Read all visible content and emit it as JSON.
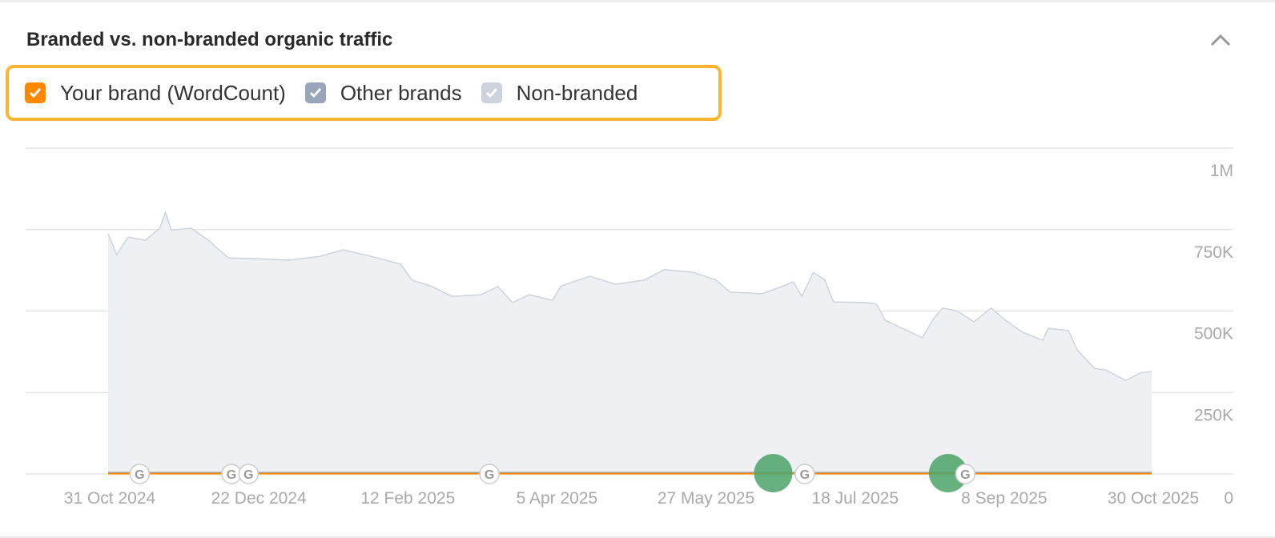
{
  "card": {
    "title": "Branded vs. non-branded organic traffic",
    "collapse_icon": "chevron-up-icon"
  },
  "legend": [
    {
      "label": "Your brand (WordCount)",
      "color": "#ff8800",
      "checked": true
    },
    {
      "label": "Other brands",
      "color": "#97a6b8",
      "checked": true
    },
    {
      "label": "Non-branded",
      "color": "#cdd3dc",
      "checked": true
    }
  ],
  "highlight_color": "#fdb52f",
  "chart_data": {
    "type": "area",
    "stacked": true,
    "title": "",
    "xlabel": "",
    "ylabel": "",
    "ylim": [
      0,
      1000000
    ],
    "xlim": [
      "2024-10-31",
      "2025-10-30"
    ],
    "grid": true,
    "y_axis_position": "right",
    "y_ticks": [
      "0",
      "250K",
      "500K",
      "750K",
      "1M"
    ],
    "y_tick_values": [
      0,
      250000,
      500000,
      750000,
      1000000
    ],
    "x_ticks": [
      "31 Oct 2024",
      "22 Dec 2024",
      "12 Feb 2025",
      "5 Apr 2025",
      "27 May 2025",
      "18 Jul 2025",
      "8 Sep 2025",
      "30 Oct 2025"
    ],
    "x_tick_dates": [
      "2024-10-31",
      "2024-12-22",
      "2025-02-12",
      "2025-04-05",
      "2025-05-27",
      "2025-07-18",
      "2025-09-08",
      "2025-10-30"
    ],
    "x": [
      "2024-10-31",
      "2024-11-03",
      "2024-11-07",
      "2024-11-13",
      "2024-11-18",
      "2024-11-20",
      "2024-11-22",
      "2024-11-29",
      "2024-12-05",
      "2024-12-12",
      "2024-12-22",
      "2025-01-02",
      "2025-01-13",
      "2025-01-21",
      "2025-02-02",
      "2025-02-10",
      "2025-02-14",
      "2025-02-21",
      "2025-02-28",
      "2025-03-10",
      "2025-03-16",
      "2025-03-21",
      "2025-03-27",
      "2025-04-04",
      "2025-04-07",
      "2025-04-17",
      "2025-04-26",
      "2025-05-06",
      "2025-05-13",
      "2025-05-23",
      "2025-05-31",
      "2025-06-05",
      "2025-06-16",
      "2025-06-23",
      "2025-06-27",
      "2025-06-30",
      "2025-07-04",
      "2025-07-08",
      "2025-07-11",
      "2025-07-22",
      "2025-07-26",
      "2025-07-29",
      "2025-08-04",
      "2025-08-11",
      "2025-08-15",
      "2025-08-18",
      "2025-08-23",
      "2025-08-29",
      "2025-09-04",
      "2025-09-09",
      "2025-09-15",
      "2025-09-22",
      "2025-09-24",
      "2025-10-01",
      "2025-10-04",
      "2025-10-10",
      "2025-10-14",
      "2025-10-21",
      "2025-10-26",
      "2025-10-30"
    ],
    "series": [
      {
        "name": "Non-branded",
        "color": "#cdd3dc",
        "fill": "#eef0f4",
        "values": [
          737000,
          673000,
          727000,
          717000,
          754000,
          803000,
          749000,
          754000,
          717000,
          663000,
          661000,
          656000,
          668000,
          688000,
          663000,
          644000,
          595000,
          575000,
          545000,
          550000,
          575000,
          526000,
          550000,
          533000,
          577000,
          607000,
          582000,
          595000,
          627000,
          619000,
          595000,
          558000,
          553000,
          575000,
          590000,
          545000,
          619000,
          595000,
          528000,
          526000,
          521000,
          472000,
          447000,
          418000,
          477000,
          509000,
          501000,
          467000,
          509000,
          472000,
          435000,
          410000,
          447000,
          440000,
          381000,
          324000,
          319000,
          287000,
          310000,
          314000
        ]
      },
      {
        "name": "Other brands",
        "color": "#97a6b8",
        "constant_approx": 3000
      },
      {
        "name": "Your brand (WordCount)",
        "color": "#ff8800",
        "constant_approx": 1000
      }
    ],
    "annotations": {
      "google_updates": [
        "2024-11-11",
        "2024-12-13",
        "2024-12-19",
        "2025-03-13",
        "2025-07-01",
        "2025-08-26"
      ],
      "google_update_icon": "google-g-icon",
      "events": [
        "2025-06-20",
        "2025-08-20"
      ],
      "event_color": "#4ca36a"
    }
  }
}
